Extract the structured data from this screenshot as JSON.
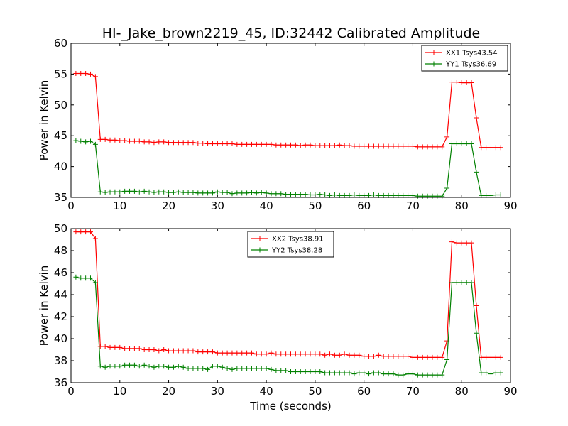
{
  "figure": {
    "title": "HI-_Jake_brown2219_45, ID:32442 Calibrated Amplitude"
  },
  "chart_data": [
    {
      "type": "line",
      "title": "HI-_Jake_brown2219_45, ID:32442 Calibrated Amplitude",
      "xlabel": "",
      "ylabel": "Power in Kelvin",
      "xlim": [
        0,
        90
      ],
      "ylim": [
        35,
        60
      ],
      "xticks": [
        0,
        10,
        20,
        30,
        40,
        50,
        60,
        70,
        80,
        90
      ],
      "yticks": [
        35,
        40,
        45,
        50,
        55,
        60
      ],
      "legend_position": "top-right",
      "grid": false,
      "series": [
        {
          "name": "XX1 Tsys43.54",
          "color": "#ff0000",
          "x": [
            1,
            2,
            3,
            4,
            5,
            6,
            7,
            8,
            9,
            10,
            11,
            12,
            13,
            14,
            15,
            16,
            17,
            18,
            19,
            20,
            21,
            22,
            23,
            24,
            25,
            26,
            27,
            28,
            29,
            30,
            31,
            32,
            33,
            34,
            35,
            36,
            37,
            38,
            39,
            40,
            41,
            42,
            43,
            44,
            45,
            46,
            47,
            48,
            49,
            50,
            51,
            52,
            53,
            54,
            55,
            56,
            57,
            58,
            59,
            60,
            61,
            62,
            63,
            64,
            65,
            66,
            67,
            68,
            69,
            70,
            71,
            72,
            73,
            74,
            75,
            76,
            77,
            78,
            79,
            80,
            81,
            82,
            83,
            84,
            85,
            86,
            87,
            88
          ],
          "y": [
            55.1,
            55.1,
            55.1,
            55.0,
            54.6,
            44.4,
            44.4,
            44.3,
            44.3,
            44.2,
            44.2,
            44.1,
            44.1,
            44.1,
            44.0,
            44.0,
            43.9,
            44.0,
            44.0,
            43.9,
            43.9,
            43.9,
            43.9,
            43.9,
            43.9,
            43.8,
            43.8,
            43.7,
            43.7,
            43.7,
            43.7,
            43.7,
            43.7,
            43.6,
            43.6,
            43.6,
            43.6,
            43.6,
            43.6,
            43.6,
            43.6,
            43.5,
            43.5,
            43.5,
            43.5,
            43.5,
            43.4,
            43.5,
            43.5,
            43.4,
            43.4,
            43.4,
            43.4,
            43.4,
            43.5,
            43.4,
            43.4,
            43.3,
            43.3,
            43.3,
            43.3,
            43.3,
            43.3,
            43.3,
            43.3,
            43.3,
            43.3,
            43.3,
            43.3,
            43.3,
            43.2,
            43.2,
            43.2,
            43.2,
            43.2,
            43.2,
            44.8,
            53.7,
            53.7,
            53.6,
            53.6,
            53.6,
            47.9,
            43.1,
            43.1,
            43.1,
            43.1,
            43.1
          ]
        },
        {
          "name": "YY1 Tsys36.69",
          "color": "#008000",
          "x": [
            1,
            2,
            3,
            4,
            5,
            6,
            7,
            8,
            9,
            10,
            11,
            12,
            13,
            14,
            15,
            16,
            17,
            18,
            19,
            20,
            21,
            22,
            23,
            24,
            25,
            26,
            27,
            28,
            29,
            30,
            31,
            32,
            33,
            34,
            35,
            36,
            37,
            38,
            39,
            40,
            41,
            42,
            43,
            44,
            45,
            46,
            47,
            48,
            49,
            50,
            51,
            52,
            53,
            54,
            55,
            56,
            57,
            58,
            59,
            60,
            61,
            62,
            63,
            64,
            65,
            66,
            67,
            68,
            69,
            70,
            71,
            72,
            73,
            74,
            75,
            76,
            77,
            78,
            79,
            80,
            81,
            82,
            83,
            84,
            85,
            86,
            87,
            88
          ],
          "y": [
            44.2,
            44.1,
            44.0,
            44.1,
            43.6,
            35.9,
            35.8,
            35.9,
            35.9,
            35.9,
            36.0,
            36.0,
            36.0,
            35.9,
            36.0,
            35.9,
            35.8,
            35.9,
            35.9,
            35.8,
            35.8,
            35.9,
            35.8,
            35.8,
            35.8,
            35.7,
            35.7,
            35.7,
            35.7,
            35.9,
            35.8,
            35.8,
            35.6,
            35.7,
            35.7,
            35.7,
            35.8,
            35.7,
            35.8,
            35.7,
            35.6,
            35.6,
            35.6,
            35.5,
            35.5,
            35.5,
            35.5,
            35.5,
            35.4,
            35.4,
            35.5,
            35.4,
            35.3,
            35.4,
            35.3,
            35.3,
            35.3,
            35.4,
            35.3,
            35.3,
            35.3,
            35.4,
            35.3,
            35.3,
            35.3,
            35.3,
            35.3,
            35.3,
            35.3,
            35.3,
            35.2,
            35.2,
            35.2,
            35.2,
            35.2,
            35.2,
            36.5,
            43.7,
            43.7,
            43.7,
            43.7,
            43.7,
            39.1,
            35.3,
            35.3,
            35.3,
            35.4,
            35.4
          ]
        }
      ]
    },
    {
      "type": "line",
      "title": "",
      "xlabel": "Time (seconds)",
      "ylabel": "Power in Kelvin",
      "xlim": [
        0,
        90
      ],
      "ylim": [
        36,
        50
      ],
      "xticks": [
        0,
        10,
        20,
        30,
        40,
        50,
        60,
        70,
        80,
        90
      ],
      "yticks": [
        36,
        38,
        40,
        42,
        44,
        46,
        48,
        50
      ],
      "legend_position": "top-center",
      "grid": false,
      "series": [
        {
          "name": "XX2 Tsys38.91",
          "color": "#ff0000",
          "x": [
            1,
            2,
            3,
            4,
            5,
            6,
            7,
            8,
            9,
            10,
            11,
            12,
            13,
            14,
            15,
            16,
            17,
            18,
            19,
            20,
            21,
            22,
            23,
            24,
            25,
            26,
            27,
            28,
            29,
            30,
            31,
            32,
            33,
            34,
            35,
            36,
            37,
            38,
            39,
            40,
            41,
            42,
            43,
            44,
            45,
            46,
            47,
            48,
            49,
            50,
            51,
            52,
            53,
            54,
            55,
            56,
            57,
            58,
            59,
            60,
            61,
            62,
            63,
            64,
            65,
            66,
            67,
            68,
            69,
            70,
            71,
            72,
            73,
            74,
            75,
            76,
            77,
            78,
            79,
            80,
            81,
            82,
            83,
            84,
            85,
            86,
            87,
            88
          ],
          "y": [
            49.7,
            49.7,
            49.7,
            49.7,
            49.1,
            39.3,
            39.3,
            39.2,
            39.2,
            39.2,
            39.1,
            39.1,
            39.1,
            39.1,
            39.0,
            39.0,
            39.0,
            38.9,
            39.0,
            38.9,
            38.9,
            38.9,
            38.9,
            38.9,
            38.9,
            38.8,
            38.8,
            38.8,
            38.8,
            38.7,
            38.7,
            38.7,
            38.7,
            38.7,
            38.7,
            38.7,
            38.7,
            38.6,
            38.6,
            38.6,
            38.7,
            38.6,
            38.6,
            38.6,
            38.6,
            38.6,
            38.6,
            38.6,
            38.6,
            38.6,
            38.6,
            38.5,
            38.6,
            38.5,
            38.5,
            38.6,
            38.5,
            38.5,
            38.5,
            38.4,
            38.4,
            38.4,
            38.5,
            38.4,
            38.4,
            38.4,
            38.4,
            38.4,
            38.4,
            38.3,
            38.3,
            38.3,
            38.3,
            38.3,
            38.3,
            38.3,
            39.8,
            48.8,
            48.7,
            48.7,
            48.7,
            48.7,
            43.0,
            38.3,
            38.3,
            38.3,
            38.3,
            38.3
          ]
        },
        {
          "name": "YY2 Tsys38.28",
          "color": "#008000",
          "x": [
            1,
            2,
            3,
            4,
            5,
            6,
            7,
            8,
            9,
            10,
            11,
            12,
            13,
            14,
            15,
            16,
            17,
            18,
            19,
            20,
            21,
            22,
            23,
            24,
            25,
            26,
            27,
            28,
            29,
            30,
            31,
            32,
            33,
            34,
            35,
            36,
            37,
            38,
            39,
            40,
            41,
            42,
            43,
            44,
            45,
            46,
            47,
            48,
            49,
            50,
            51,
            52,
            53,
            54,
            55,
            56,
            57,
            58,
            59,
            60,
            61,
            62,
            63,
            64,
            65,
            66,
            67,
            68,
            69,
            70,
            71,
            72,
            73,
            74,
            75,
            76,
            77,
            78,
            79,
            80,
            81,
            82,
            83,
            84,
            85,
            86,
            87,
            88
          ],
          "y": [
            45.6,
            45.5,
            45.5,
            45.5,
            45.1,
            37.5,
            37.4,
            37.5,
            37.5,
            37.5,
            37.6,
            37.6,
            37.6,
            37.5,
            37.6,
            37.5,
            37.4,
            37.5,
            37.5,
            37.4,
            37.4,
            37.5,
            37.4,
            37.3,
            37.3,
            37.3,
            37.3,
            37.2,
            37.5,
            37.5,
            37.4,
            37.3,
            37.2,
            37.3,
            37.3,
            37.3,
            37.3,
            37.3,
            37.3,
            37.3,
            37.2,
            37.1,
            37.1,
            37.1,
            37.0,
            37.0,
            37.0,
            37.0,
            37.0,
            37.0,
            37.0,
            36.9,
            36.9,
            36.9,
            36.9,
            36.9,
            36.9,
            36.8,
            36.9,
            36.9,
            36.8,
            36.9,
            36.9,
            36.8,
            36.8,
            36.8,
            36.7,
            36.7,
            36.8,
            36.8,
            36.7,
            36.7,
            36.7,
            36.7,
            36.7,
            36.7,
            38.1,
            45.1,
            45.1,
            45.1,
            45.1,
            45.1,
            40.5,
            36.9,
            36.9,
            36.8,
            36.9,
            36.9
          ]
        }
      ]
    }
  ]
}
